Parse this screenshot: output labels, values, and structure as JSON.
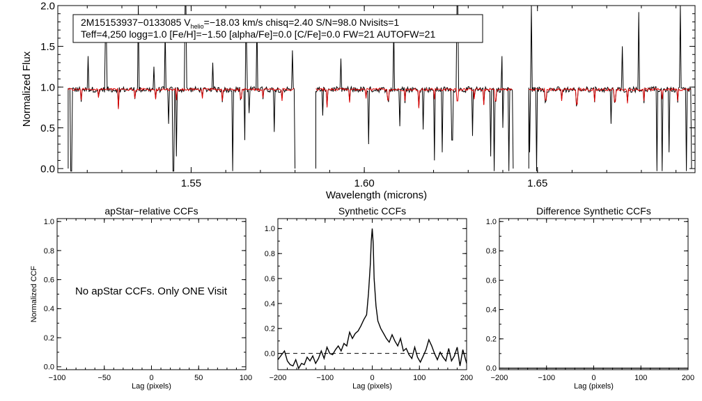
{
  "chart_data": [
    {
      "type": "line",
      "id": "spectrum",
      "xlabel": "Wavelength (microns)",
      "ylabel": "Normalized Flux",
      "xlim": [
        1.5115,
        1.6955
      ],
      "ylim": [
        -0.05,
        2.0
      ],
      "xticks": [
        {
          "v": 1.55,
          "label": "1.55"
        },
        {
          "v": 1.6,
          "label": "1.60"
        },
        {
          "v": 1.65,
          "label": "1.65"
        }
      ],
      "yticks": [
        {
          "v": 0.0,
          "label": "0.0"
        },
        {
          "v": 0.5,
          "label": "0.5"
        },
        {
          "v": 1.0,
          "label": "1.0"
        },
        {
          "v": 1.5,
          "label": "1.5"
        },
        {
          "v": 2.0,
          "label": "2.0"
        }
      ],
      "info": {
        "id": "2M15153937−0133085",
        "v_sym": "V",
        "v_sub": "helio",
        "v_rest": "=−18.03 km/s  chisq=2.40  S/N=98.0  Nvisits=1",
        "line2": "Teff=4,250 logg=1.0 [Fe/H]=−1.50 [alpha/Fe]=0.0 [C/Fe]=0.0 FW=21 AUTOFW=21"
      },
      "segments": [
        [
          1.5145,
          1.58
        ],
        [
          1.586,
          1.643
        ],
        [
          1.6475,
          1.6945
        ]
      ],
      "continuum": 0.97,
      "colors": {
        "observed": "#000000",
        "model": "#e00000"
      },
      "spikes_up": [
        [
          1.5203,
          1.38
        ],
        [
          1.5254,
          1.72
        ],
        [
          1.5347,
          2.0
        ],
        [
          1.5392,
          1.25
        ],
        [
          1.5426,
          1.72
        ],
        [
          1.5484,
          2.0
        ],
        [
          1.5562,
          1.3
        ],
        [
          1.5659,
          1.55
        ],
        [
          1.569,
          1.85
        ],
        [
          1.5793,
          1.45
        ],
        [
          1.5933,
          1.35
        ],
        [
          1.6085,
          1.75
        ],
        [
          1.6269,
          2.0
        ],
        [
          1.6313,
          1.35
        ],
        [
          1.6398,
          1.38
        ],
        [
          1.6483,
          2.0
        ],
        [
          1.6746,
          1.5
        ],
        [
          1.6793,
          1.92
        ],
        [
          1.6912,
          2.0
        ]
      ],
      "spikes_down": [
        [
          1.5154,
          -0.03
        ],
        [
          1.5435,
          0.55
        ],
        [
          1.5449,
          -0.03
        ],
        [
          1.5458,
          0.15
        ],
        [
          1.562,
          -0.03
        ],
        [
          1.5655,
          0.35
        ],
        [
          1.5667,
          0.68
        ],
        [
          1.574,
          0.45
        ],
        [
          1.5807,
          -0.03
        ],
        [
          1.588,
          0.65
        ],
        [
          1.6012,
          0.3
        ],
        [
          1.6102,
          0.52
        ],
        [
          1.617,
          0.48
        ],
        [
          1.6203,
          0.1
        ],
        [
          1.6226,
          0.2
        ],
        [
          1.6254,
          0.35
        ],
        [
          1.6312,
          0.4
        ],
        [
          1.6365,
          0.15
        ],
        [
          1.6376,
          -0.03
        ],
        [
          1.6401,
          0.5
        ],
        [
          1.6418,
          -0.03
        ],
        [
          1.644,
          -0.03
        ],
        [
          1.6478,
          0.2
        ],
        [
          1.6497,
          -0.03
        ],
        [
          1.6712,
          0.55
        ],
        [
          1.6846,
          -0.03
        ],
        [
          1.6861,
          -0.03
        ],
        [
          1.6881,
          0.2
        ],
        [
          1.693,
          -0.03
        ]
      ],
      "model_dips": [
        [
          1.5183,
          0.84
        ],
        [
          1.5232,
          0.87
        ],
        [
          1.529,
          0.73
        ],
        [
          1.5338,
          0.86
        ],
        [
          1.5397,
          0.85
        ],
        [
          1.5458,
          0.84
        ],
        [
          1.5532,
          0.86
        ],
        [
          1.559,
          0.83
        ],
        [
          1.5644,
          0.86
        ],
        [
          1.5708,
          0.87
        ],
        [
          1.5762,
          0.83
        ],
        [
          1.5892,
          0.75
        ],
        [
          1.5958,
          0.81
        ],
        [
          1.6005,
          0.86
        ],
        [
          1.6069,
          0.84
        ],
        [
          1.6117,
          0.83
        ],
        [
          1.6158,
          0.74
        ],
        [
          1.6203,
          0.85
        ],
        [
          1.6269,
          0.83
        ],
        [
          1.6318,
          0.85
        ],
        [
          1.6345,
          0.78
        ],
        [
          1.6379,
          0.83
        ],
        [
          1.6524,
          0.84
        ],
        [
          1.657,
          0.83
        ],
        [
          1.6614,
          0.79
        ],
        [
          1.6665,
          0.82
        ],
        [
          1.6724,
          0.82
        ],
        [
          1.676,
          0.8
        ],
        [
          1.6807,
          0.83
        ],
        [
          1.686,
          0.85
        ],
        [
          1.6906,
          0.83
        ]
      ]
    },
    {
      "type": "line",
      "id": "ccf_apstar",
      "title": "apStar−relative CCFs",
      "xlabel": "Lag (pixels)",
      "ylabel": "Normalized CCF",
      "xlim": [
        -100,
        100
      ],
      "ylim": [
        -0.02,
        1.02
      ],
      "xticks": [
        {
          "v": -100,
          "label": "−100"
        },
        {
          "v": -50,
          "label": "−50"
        },
        {
          "v": 0,
          "label": "0"
        },
        {
          "v": 50,
          "label": "50"
        },
        {
          "v": 100,
          "label": "100"
        }
      ],
      "yticks": [
        {
          "v": 0.0,
          "label": "0.0"
        },
        {
          "v": 0.2,
          "label": "0.2"
        },
        {
          "v": 0.4,
          "label": "0.4"
        },
        {
          "v": 0.6,
          "label": "0.6"
        },
        {
          "v": 0.8,
          "label": "0.8"
        },
        {
          "v": 1.0,
          "label": "1.0"
        }
      ],
      "message": "No apStar CCFs.  Only ONE Visit"
    },
    {
      "type": "line",
      "id": "ccf_synthetic",
      "title": "Synthetic CCFs",
      "xlabel": "Lag (pixels)",
      "xlim": [
        -200,
        200
      ],
      "ylim": [
        -0.13,
        1.08
      ],
      "baseline": 0.0,
      "xticks": [
        {
          "v": -200,
          "label": "−200"
        },
        {
          "v": -100,
          "label": "−100"
        },
        {
          "v": 0,
          "label": "0"
        },
        {
          "v": 100,
          "label": "100"
        },
        {
          "v": 200,
          "label": "200"
        }
      ],
      "yticks": [
        {
          "v": 0.0,
          "label": "0.0"
        },
        {
          "v": 0.2,
          "label": "0.2"
        },
        {
          "v": 0.4,
          "label": "0.4"
        },
        {
          "v": 0.6,
          "label": "0.6"
        },
        {
          "v": 0.8,
          "label": "0.8"
        },
        {
          "v": 1.0,
          "label": "1.0"
        }
      ],
      "x": [
        -200,
        -192,
        -186,
        -180,
        -174,
        -168,
        -162,
        -156,
        -150,
        -144,
        -138,
        -132,
        -126,
        -120,
        -114,
        -108,
        -102,
        -96,
        -90,
        -84,
        -78,
        -72,
        -66,
        -60,
        -54,
        -48,
        -42,
        -36,
        -30,
        -24,
        -18,
        -12,
        -8,
        -4,
        -2,
        0,
        2,
        4,
        8,
        12,
        18,
        24,
        30,
        36,
        42,
        48,
        54,
        60,
        66,
        72,
        78,
        84,
        90,
        96,
        102,
        108,
        114,
        120,
        126,
        132,
        138,
        144,
        150,
        156,
        162,
        168,
        174,
        180,
        186,
        192,
        200
      ],
      "values": [
        -0.05,
        -0.01,
        0.02,
        -0.06,
        -0.09,
        -0.1,
        -0.05,
        -0.12,
        -0.08,
        -0.09,
        -0.03,
        -0.06,
        -0.02,
        -0.08,
        -0.04,
        0.02,
        -0.04,
        0.05,
        0.0,
        -0.01,
        0.03,
        0.06,
        0.02,
        0.08,
        0.06,
        0.17,
        0.12,
        0.16,
        0.18,
        0.22,
        0.27,
        0.31,
        0.48,
        0.72,
        0.9,
        1.0,
        0.88,
        0.6,
        0.38,
        0.26,
        0.2,
        0.16,
        0.12,
        0.09,
        0.15,
        0.1,
        0.06,
        0.12,
        0.02,
        0.04,
        -0.01,
        -0.04,
        0.05,
        -0.03,
        -0.07,
        -0.02,
        0.03,
        0.11,
        0.06,
        0.0,
        -0.05,
        0.01,
        -0.03,
        -0.06,
        0.04,
        -0.06,
        -0.02,
        0.05,
        -0.1,
        0.03,
        -0.08
      ]
    },
    {
      "type": "line",
      "id": "ccf_difference",
      "title": "Difference Synthetic CCFs",
      "xlabel": "Lag (pixels)",
      "xlim": [
        -200,
        200
      ],
      "ylim": [
        -0.01,
        1.02
      ],
      "xticks": [
        {
          "v": -200,
          "label": "−200"
        },
        {
          "v": -100,
          "label": "−100"
        },
        {
          "v": 0,
          "label": "0"
        },
        {
          "v": 100,
          "label": "100"
        },
        {
          "v": 200,
          "label": "200"
        }
      ],
      "yticks": [
        {
          "v": 0.0,
          "label": "0.0"
        },
        {
          "v": 0.2,
          "label": "0.2"
        },
        {
          "v": 0.4,
          "label": "0.4"
        },
        {
          "v": 0.6,
          "label": "0.6"
        },
        {
          "v": 0.8,
          "label": "0.8"
        },
        {
          "v": 1.0,
          "label": "1.0"
        }
      ],
      "x": [
        -200,
        200
      ],
      "values": [
        0.0,
        0.0
      ]
    }
  ]
}
